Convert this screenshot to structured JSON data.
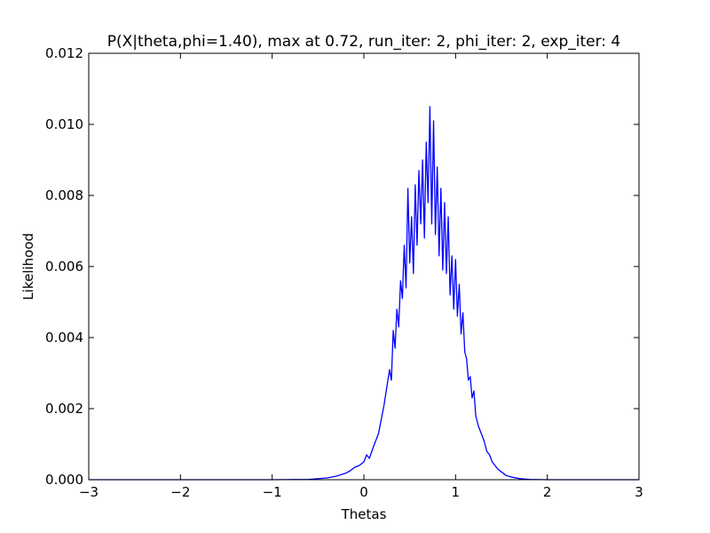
{
  "chart_data": {
    "type": "line",
    "title": "P(X|theta,phi=1.40), max at 0.72, run_iter: 2, phi_iter: 2, exp_iter: 4",
    "xlabel": "Thetas",
    "ylabel": "Likelihood",
    "xlim": [
      -3,
      3
    ],
    "ylim": [
      0,
      0.012
    ],
    "xticks": [
      -3,
      -2,
      -1,
      0,
      1,
      2,
      3
    ],
    "xtick_labels": [
      "−3",
      "−2",
      "−1",
      "0",
      "1",
      "2",
      "3"
    ],
    "yticks": [
      0.0,
      0.002,
      0.004,
      0.006,
      0.008,
      0.01,
      0.012
    ],
    "ytick_labels": [
      "0.000",
      "0.002",
      "0.004",
      "0.006",
      "0.008",
      "0.010",
      "0.012"
    ],
    "grid": false,
    "legend": "none",
    "line_color": "#0000ff",
    "series": [
      {
        "x": [
          -3.0,
          -2.5,
          -2.0,
          -1.5,
          -1.0,
          -0.6,
          -0.4,
          -0.3,
          -0.2,
          -0.15,
          -0.1,
          -0.05,
          0.0,
          0.03,
          0.06,
          0.1,
          0.13,
          0.16,
          0.19,
          0.22,
          0.25,
          0.28,
          0.3,
          0.32,
          0.34,
          0.36,
          0.38,
          0.4,
          0.42,
          0.44,
          0.46,
          0.48,
          0.5,
          0.52,
          0.54,
          0.56,
          0.58,
          0.6,
          0.62,
          0.64,
          0.66,
          0.68,
          0.7,
          0.72,
          0.74,
          0.76,
          0.78,
          0.8,
          0.82,
          0.84,
          0.86,
          0.88,
          0.9,
          0.92,
          0.94,
          0.96,
          0.98,
          1.0,
          1.02,
          1.04,
          1.06,
          1.08,
          1.1,
          1.12,
          1.14,
          1.16,
          1.18,
          1.2,
          1.22,
          1.25,
          1.28,
          1.31,
          1.34,
          1.37,
          1.4,
          1.43,
          1.46,
          1.5,
          1.55,
          1.6,
          1.7,
          1.8,
          2.0,
          2.5,
          3.0
        ],
        "y": [
          0.0,
          0.0,
          0.0,
          0.0,
          0.0,
          1e-05,
          5e-05,
          0.0001,
          0.00018,
          0.00025,
          0.00035,
          0.0004,
          0.0005,
          0.0007,
          0.0006,
          0.0009,
          0.0011,
          0.0013,
          0.0017,
          0.0021,
          0.0026,
          0.0031,
          0.0028,
          0.0042,
          0.0037,
          0.0048,
          0.0043,
          0.0056,
          0.0051,
          0.0066,
          0.0054,
          0.0082,
          0.0061,
          0.0074,
          0.0058,
          0.0083,
          0.0066,
          0.0087,
          0.0072,
          0.009,
          0.0068,
          0.0095,
          0.0078,
          0.0105,
          0.0072,
          0.0101,
          0.0069,
          0.0088,
          0.0063,
          0.0082,
          0.0059,
          0.0078,
          0.0058,
          0.0074,
          0.0052,
          0.0063,
          0.0048,
          0.0062,
          0.0046,
          0.0055,
          0.0041,
          0.0047,
          0.0036,
          0.0034,
          0.0028,
          0.0029,
          0.0023,
          0.0025,
          0.0018,
          0.0015,
          0.0013,
          0.0011,
          0.0008,
          0.0007,
          0.0005,
          0.0004,
          0.0003,
          0.00022,
          0.00012,
          8e-05,
          3e-05,
          1e-05,
          0.0,
          0.0,
          0.0
        ]
      }
    ]
  }
}
